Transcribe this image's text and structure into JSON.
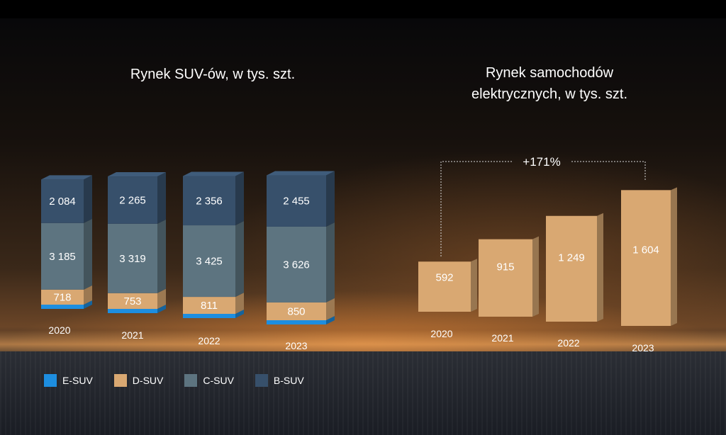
{
  "chart_data": [
    {
      "type": "bar",
      "stacked": true,
      "title": "Rynek SUV-ów,  w tys. szt.",
      "categories": [
        "2020",
        "2021",
        "2022",
        "2023"
      ],
      "series": [
        {
          "name": "E-SUV",
          "color": "#1d8ee0",
          "values": [
            null,
            null,
            null,
            null
          ]
        },
        {
          "name": "D-SUV",
          "color": "#d9a872",
          "values": [
            718,
            753,
            811,
            850
          ]
        },
        {
          "name": "C-SUV",
          "color": "#5d7480",
          "values": [
            3185,
            3319,
            3425,
            3626
          ]
        },
        {
          "name": "B-SUV",
          "color": "#37506b",
          "values": [
            2084,
            2265,
            2356,
            2455
          ]
        }
      ],
      "value_labels": {
        "D-SUV": [
          "718",
          "753",
          "811",
          "850"
        ],
        "C-SUV": [
          "3 185",
          "3 319",
          "3 425",
          "3 626"
        ],
        "B-SUV": [
          "2 084",
          "2 265",
          "2 356",
          "2 455"
        ]
      },
      "legend": "bottom-left",
      "grid": false
    },
    {
      "type": "bar",
      "title": "Rynek samochodów elektrycznych, w tys. szt.",
      "title_lines": [
        "Rynek samochodów",
        "elektrycznych, w tys. szt."
      ],
      "categories": [
        "2020",
        "2021",
        "2022",
        "2023"
      ],
      "values": [
        592,
        915,
        1249,
        1604
      ],
      "value_labels": [
        "592",
        "915",
        "1 249",
        "1 604"
      ],
      "color": "#d9a872",
      "annotation": "+171%",
      "grid": false
    }
  ],
  "legend_items": [
    {
      "name": "E-SUV",
      "color": "#1d8ee0"
    },
    {
      "name": "D-SUV",
      "color": "#d9a872"
    },
    {
      "name": "C-SUV",
      "color": "#5d7480"
    },
    {
      "name": "B-SUV",
      "color": "#37506b"
    }
  ]
}
